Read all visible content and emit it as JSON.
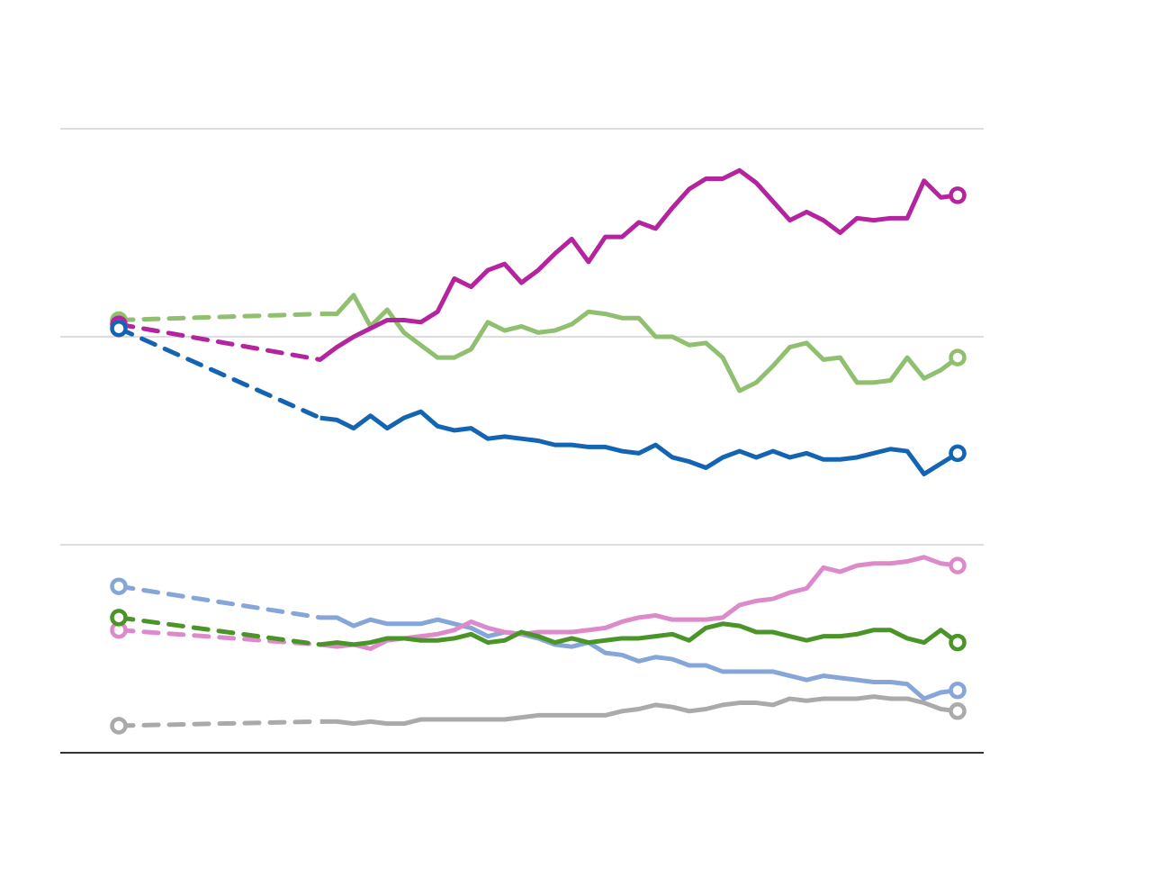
{
  "chart_data": {
    "type": "line",
    "title": "",
    "xlabel": "",
    "ylabel": "",
    "xlim": [
      0,
      50
    ],
    "ylim": [
      0,
      3
    ],
    "y_gridlines": [
      1,
      2,
      3
    ],
    "grid": "horizontal",
    "tick_labels_shown": false,
    "dashed_segment": [
      0,
      12
    ],
    "x": [
      0,
      12,
      13,
      14,
      15,
      16,
      17,
      18,
      19,
      20,
      21,
      22,
      23,
      24,
      25,
      26,
      27,
      28,
      29,
      30,
      31,
      32,
      33,
      34,
      35,
      36,
      37,
      38,
      39,
      40,
      41,
      42,
      43,
      44,
      45,
      46,
      47,
      48,
      49,
      50
    ],
    "series": [
      {
        "color": "#aaaaaa",
        "values": [
          0.13,
          0.15,
          0.15,
          0.14,
          0.15,
          0.14,
          0.14,
          0.16,
          0.16,
          0.16,
          0.16,
          0.16,
          0.16,
          0.17,
          0.18,
          0.18,
          0.18,
          0.18,
          0.18,
          0.2,
          0.21,
          0.23,
          0.22,
          0.2,
          0.21,
          0.23,
          0.24,
          0.24,
          0.23,
          0.26,
          0.25,
          0.26,
          0.26,
          0.26,
          0.27,
          0.26,
          0.26,
          0.24,
          0.21,
          0.2
        ]
      },
      {
        "color": "#86a6d9",
        "values": [
          0.8,
          0.65,
          0.65,
          0.61,
          0.64,
          0.62,
          0.62,
          0.62,
          0.64,
          0.62,
          0.6,
          0.56,
          0.58,
          0.57,
          0.55,
          0.52,
          0.51,
          0.53,
          0.48,
          0.47,
          0.44,
          0.46,
          0.45,
          0.42,
          0.42,
          0.39,
          0.39,
          0.39,
          0.39,
          0.37,
          0.35,
          0.37,
          0.36,
          0.35,
          0.34,
          0.34,
          0.33,
          0.26,
          0.29,
          0.3
        ]
      },
      {
        "color": "#dd8acb",
        "values": [
          0.59,
          0.52,
          0.51,
          0.52,
          0.5,
          0.54,
          0.55,
          0.56,
          0.57,
          0.59,
          0.63,
          0.6,
          0.58,
          0.57,
          0.58,
          0.58,
          0.58,
          0.59,
          0.6,
          0.63,
          0.65,
          0.66,
          0.64,
          0.64,
          0.64,
          0.65,
          0.71,
          0.73,
          0.74,
          0.77,
          0.79,
          0.89,
          0.87,
          0.9,
          0.91,
          0.91,
          0.92,
          0.94,
          0.91,
          0.9
        ]
      },
      {
        "color": "#4a9428",
        "values": [
          0.65,
          0.52,
          0.53,
          0.52,
          0.53,
          0.55,
          0.55,
          0.54,
          0.54,
          0.55,
          0.57,
          0.53,
          0.54,
          0.58,
          0.56,
          0.53,
          0.55,
          0.53,
          0.54,
          0.55,
          0.55,
          0.56,
          0.57,
          0.54,
          0.6,
          0.62,
          0.61,
          0.58,
          0.58,
          0.56,
          0.54,
          0.56,
          0.56,
          0.57,
          0.59,
          0.59,
          0.55,
          0.53,
          0.59,
          0.53
        ]
      },
      {
        "color": "#8fbf6f",
        "values": [
          2.08,
          2.11,
          2.11,
          2.2,
          2.05,
          2.13,
          2.02,
          1.96,
          1.9,
          1.9,
          1.94,
          2.07,
          2.03,
          2.05,
          2.02,
          2.03,
          2.06,
          2.12,
          2.11,
          2.09,
          2.09,
          2.0,
          2.0,
          1.96,
          1.97,
          1.9,
          1.74,
          1.78,
          1.86,
          1.95,
          1.97,
          1.89,
          1.9,
          1.78,
          1.78,
          1.79,
          1.9,
          1.8,
          1.84,
          1.9
        ]
      },
      {
        "color": "#b5249f",
        "values": [
          2.06,
          1.89,
          1.95,
          2.0,
          2.04,
          2.08,
          2.08,
          2.07,
          2.12,
          2.28,
          2.24,
          2.32,
          2.35,
          2.26,
          2.32,
          2.4,
          2.47,
          2.36,
          2.48,
          2.48,
          2.55,
          2.52,
          2.62,
          2.71,
          2.76,
          2.76,
          2.8,
          2.74,
          2.65,
          2.56,
          2.6,
          2.56,
          2.5,
          2.57,
          2.56,
          2.57,
          2.57,
          2.75,
          2.67,
          2.68
        ]
      },
      {
        "color": "#1464b4",
        "values": [
          2.04,
          1.61,
          1.6,
          1.56,
          1.62,
          1.56,
          1.61,
          1.64,
          1.57,
          1.55,
          1.56,
          1.51,
          1.52,
          1.51,
          1.5,
          1.48,
          1.48,
          1.47,
          1.47,
          1.45,
          1.44,
          1.48,
          1.42,
          1.4,
          1.37,
          1.42,
          1.45,
          1.42,
          1.45,
          1.42,
          1.44,
          1.41,
          1.41,
          1.42,
          1.44,
          1.46,
          1.45,
          1.34,
          1.39,
          1.44
        ]
      }
    ]
  }
}
